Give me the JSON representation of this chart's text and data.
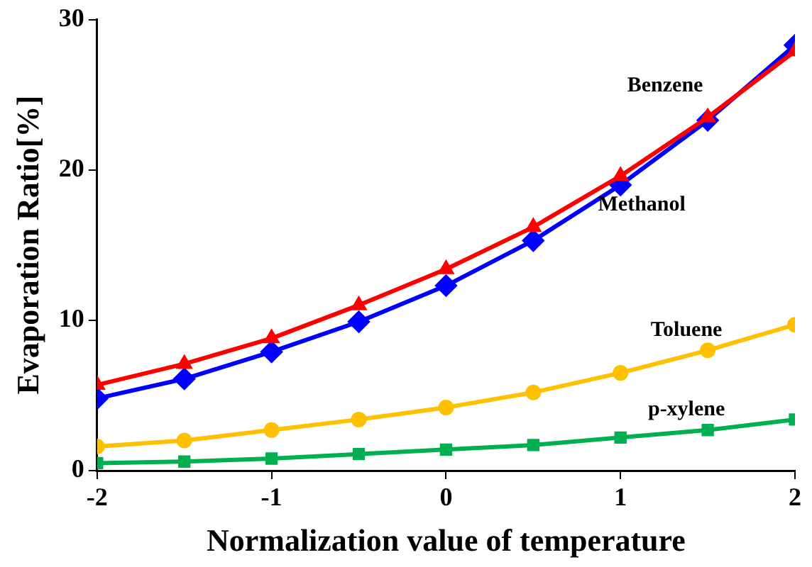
{
  "chart_data": {
    "type": "line",
    "xlabel": "Normalization value of temperature",
    "ylabel": "Evaporation Ratio[%]",
    "x": [
      -2,
      -1.5,
      -1,
      -0.5,
      0,
      0.5,
      1,
      1.5,
      2
    ],
    "xlim": [
      -2,
      2
    ],
    "xticks": [
      -2,
      -1,
      0,
      1,
      2
    ],
    "ylim": [
      0,
      30
    ],
    "yticks": [
      0,
      10,
      20,
      30
    ],
    "grid": false,
    "legend": false,
    "series": [
      {
        "name": "Benzene",
        "color": "#ff0000",
        "marker": "triangle",
        "values": [
          5.7,
          7.1,
          8.8,
          11.0,
          13.4,
          16.2,
          19.6,
          23.5,
          27.9
        ]
      },
      {
        "name": "Methanol",
        "color": "#0000ff",
        "marker": "diamond",
        "values": [
          4.8,
          6.1,
          7.9,
          9.9,
          12.3,
          15.3,
          19.0,
          23.3,
          28.3
        ]
      },
      {
        "name": "Toluene",
        "color": "#ffc000",
        "marker": "circle",
        "values": [
          1.6,
          2.0,
          2.7,
          3.4,
          4.2,
          5.2,
          6.5,
          8.0,
          9.7
        ]
      },
      {
        "name": "p-xylene",
        "color": "#00b050",
        "marker": "square",
        "values": [
          0.5,
          0.6,
          0.8,
          1.1,
          1.4,
          1.7,
          2.2,
          2.7,
          3.4
        ]
      }
    ]
  }
}
